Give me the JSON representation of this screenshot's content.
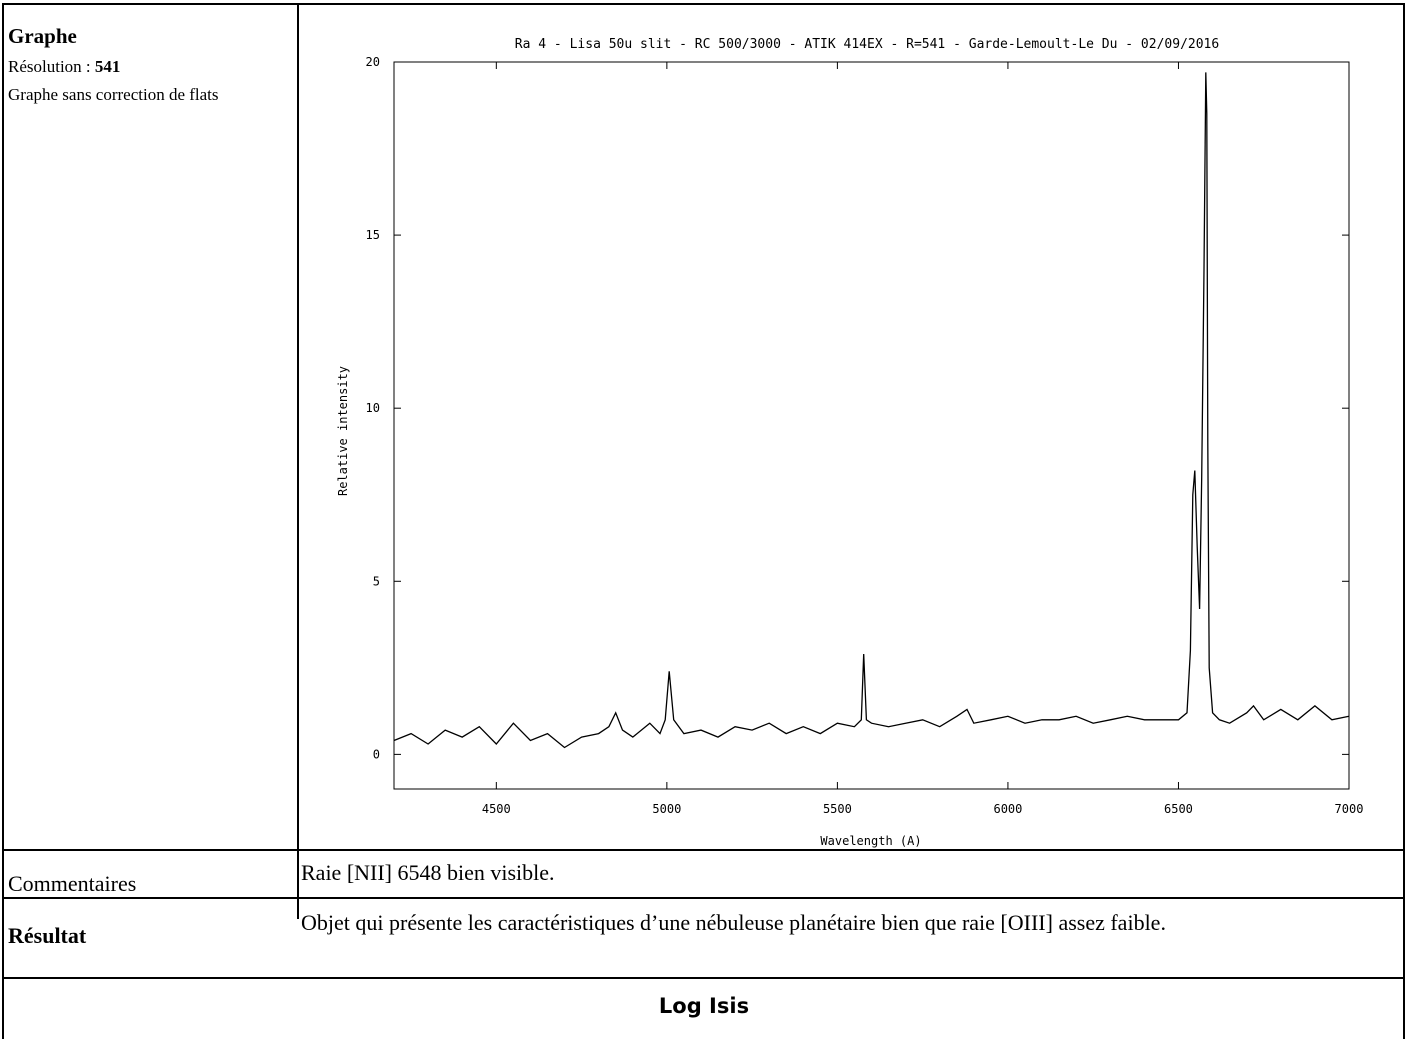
{
  "graph_section": {
    "label": "Graphe",
    "resolution_label": "Résolution : ",
    "resolution_value": "541",
    "note": "Graphe sans correction de flats"
  },
  "comments": {
    "label": "Commentaires",
    "text": "Raie [NII] 6548 bien visible."
  },
  "result": {
    "label": "Résultat",
    "text": "Objet qui présente les caractéristiques d’une nébuleuse planétaire bien que raie [OIII] assez faible."
  },
  "footer": {
    "title": "Log Isis"
  },
  "chart_data": {
    "type": "line",
    "title": "Ra 4 - Lisa 50u slit - RC 500/3000 - ATIK 414EX - R=541  - Garde-Lemoult-Le Du - 02/09/2016",
    "xlabel": "Wavelength (A)",
    "ylabel": "Relative intensity",
    "xlim": [
      4200,
      7000
    ],
    "ylim": [
      -1,
      20
    ],
    "xticks": [
      4500,
      5000,
      5500,
      6000,
      6500,
      7000
    ],
    "yticks": [
      0,
      5,
      10,
      15,
      20
    ],
    "grid": false,
    "series": [
      {
        "x": [
          4200,
          4250,
          4300,
          4350,
          4400,
          4450,
          4500,
          4550,
          4600,
          4650,
          4700,
          4750,
          4800,
          4830,
          4850,
          4870,
          4900,
          4950,
          4980,
          4995,
          5007,
          5020,
          5050,
          5100,
          5150,
          5200,
          5250,
          5300,
          5350,
          5400,
          5450,
          5500,
          5550,
          5570,
          5577,
          5585,
          5600,
          5650,
          5700,
          5750,
          5800,
          5850,
          5880,
          5900,
          5950,
          6000,
          6050,
          6100,
          6150,
          6200,
          6250,
          6300,
          6350,
          6400,
          6450,
          6500,
          6525,
          6535,
          6542,
          6548,
          6555,
          6562,
          6568,
          6575,
          6580,
          6583,
          6586,
          6590,
          6600,
          6620,
          6650,
          6700,
          6720,
          6750,
          6800,
          6850,
          6900,
          6950,
          7000
        ],
        "y": [
          0.4,
          0.6,
          0.3,
          0.7,
          0.5,
          0.8,
          0.3,
          0.9,
          0.4,
          0.6,
          0.2,
          0.5,
          0.6,
          0.8,
          1.2,
          0.7,
          0.5,
          0.9,
          0.6,
          1.0,
          2.4,
          1.0,
          0.6,
          0.7,
          0.5,
          0.8,
          0.7,
          0.9,
          0.6,
          0.8,
          0.6,
          0.9,
          0.8,
          1.0,
          2.9,
          1.0,
          0.9,
          0.8,
          0.9,
          1.0,
          0.8,
          1.1,
          1.3,
          0.9,
          1.0,
          1.1,
          0.9,
          1.0,
          1.0,
          1.1,
          0.9,
          1.0,
          1.1,
          1.0,
          1.0,
          1.0,
          1.2,
          3.0,
          7.5,
          8.2,
          6.0,
          4.2,
          8.0,
          14.0,
          19.7,
          18.5,
          9.0,
          2.5,
          1.2,
          1.0,
          0.9,
          1.2,
          1.4,
          1.0,
          1.3,
          1.0,
          1.4,
          1.0,
          1.1
        ]
      }
    ]
  }
}
